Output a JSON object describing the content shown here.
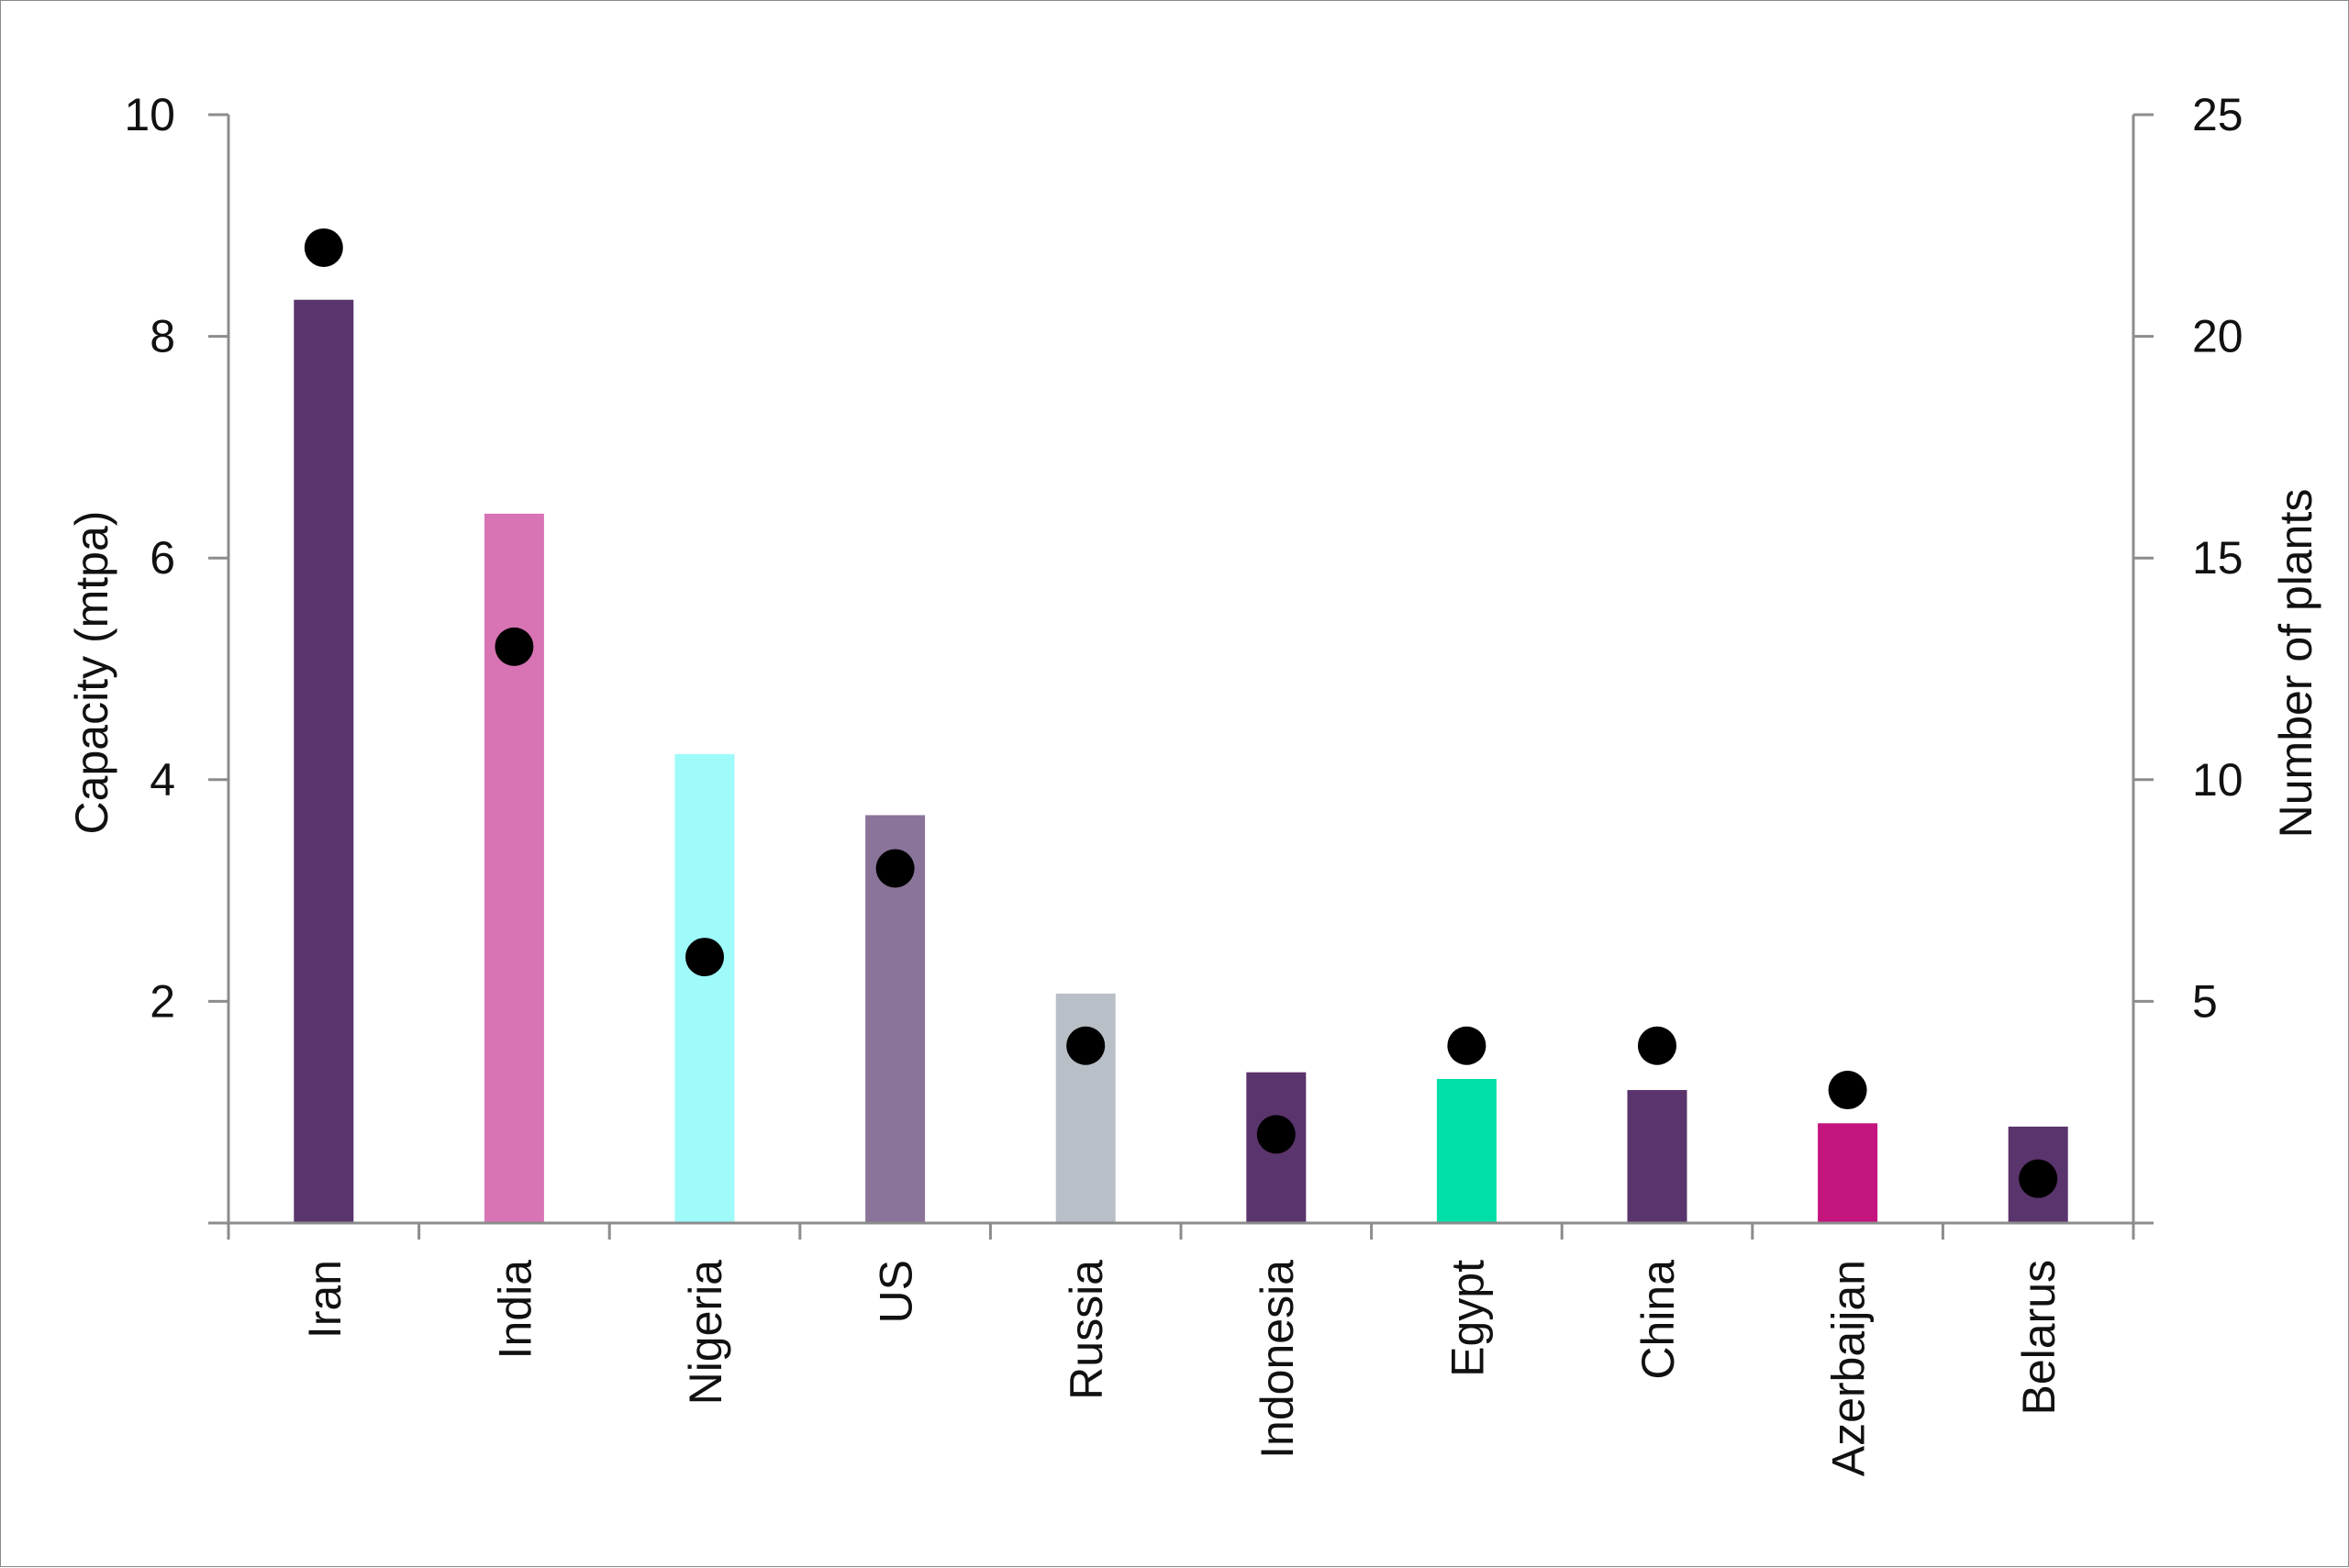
{
  "chart_data": {
    "type": "bar",
    "categories": [
      "Iran",
      "India",
      "Nigeria",
      "US",
      "Russia",
      "Indonesia",
      "Egypt",
      "China",
      "Azerbaijan",
      "Belarus"
    ],
    "series": [
      {
        "axis": "left",
        "kind": "bar",
        "values": [
          8.33,
          6.4,
          4.23,
          3.68,
          2.07,
          1.36,
          1.3,
          1.2,
          0.9,
          0.87
        ],
        "colors": [
          "#5a346c",
          "#d874b4",
          "#9ffafa",
          "#8a7499",
          "#b8bfc7",
          "#5a346c",
          "#00dfa8",
          "#5a346c",
          "#c4147e",
          "#5a346c"
        ]
      },
      {
        "axis": "right",
        "kind": "scatter",
        "values": [
          22,
          13,
          6,
          8,
          4,
          2,
          4,
          4,
          3,
          1
        ],
        "color": "#000000"
      }
    ],
    "ylabel": "Capacity (mtpa)",
    "y2label": "Number of plants",
    "ylim": [
      0,
      10
    ],
    "y2lim": [
      0,
      25
    ],
    "yticks": [
      "2",
      "4",
      "6",
      "8",
      "10"
    ],
    "y2ticks": [
      "5",
      "10",
      "15",
      "20",
      "25"
    ],
    "grid": false,
    "legend": "none"
  }
}
